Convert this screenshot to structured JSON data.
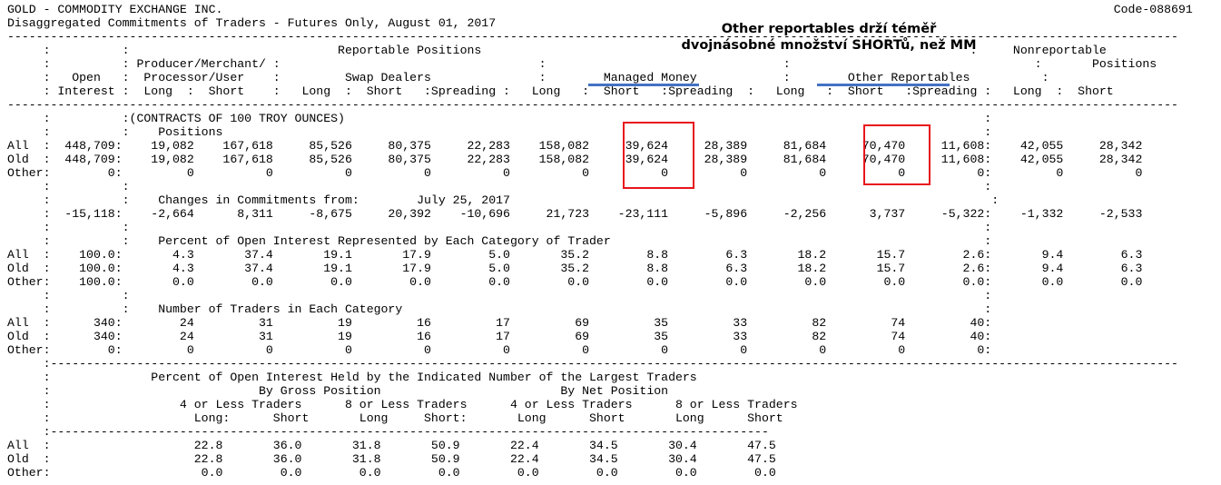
{
  "report": {
    "lines": [
      "GOLD - COMMODITY EXCHANGE INC.                                                                                                                            Code-088691",
      "Disaggregated Commitments of Traders - Futures Only, August 01, 2017",
      "-------------------------------------------------------------------------------------------------------------------------------------------------------------------",
      "     :          :                             Reportable Positions                                                                    :     Nonreportable",
      "     :          : Producer/Merchant/ :                                    :                                 :                                  :       Positions",
      "     :   Open   :  Processor/User    :         Swap Dealers               :        Managed Money            :        Other Reportables          :",
      "     : Interest :  Long  :  Short    :   Long  :  Short   :Spreading :   Long   :  Short   :Spreading  :   Long   :  Short   :Spreading :   Long  :  Short",
      "-------------------------------------------------------------------------------------------------------------------------------------------------------------------",
      "     :          :(CONTRACTS OF 100 TROY OUNCES)                                                                                         :",
      "     :          :    Positions                                                                                                          :",
      "All  :  448,709:    19,082    167,618     85,526     80,375     22,283    158,082     39,624     28,389     81,684     70,470     11,608:    42,055     28,342",
      "Old  :  448,709:    19,082    167,618     85,526     80,375     22,283    158,082     39,624     28,389     81,684     70,470     11,608:    42,055     28,342",
      "Other:        0:         0          0          0          0          0          0          0          0          0          0          0:         0          0",
      "     :          :                                                                                                                       :",
      "     :          :    Changes in Commitments from:        July 25, 2017                                                                   :",
      "     :  -15,118:    -2,664      8,311     -8,675     20,392    -10,696     21,723    -23,111     -5,896     -2,256      3,737     -5,322:    -1,332     -2,533",
      "     :          :                                                                                                                       :",
      "     :          :    Percent of Open Interest Represented by Each Category of Trader                                                    :",
      "All  :    100.0:       4.3       37.4       19.1       17.9        5.0       35.2        8.8        6.3       18.2       15.7        2.6:       9.4        6.3",
      "Old  :    100.0:       4.3       37.4       19.1       17.9        5.0       35.2        8.8        6.3       18.2       15.7        2.6:       9.4        6.3",
      "Other:    100.0:       0.0        0.0        0.0        0.0        0.0        0.0        0.0        0.0        0.0        0.0        0.0:       0.0        0.0",
      "     :          :                                                                                                                       :",
      "     :          :    Number of Traders in Each Category                                                                                 :",
      "All  :      340:        24         31         19         16         17         69         35         33         82         74         40:",
      "Old  :      340:        24         31         19         16         17         69         35         33         82         74         40:",
      "Other:        0:         0          0          0          0          0          0          0          0          0          0          0:",
      "     :-------------------------------------------------------------------------------------------------------------------------------------------------------------",
      "     :              Percent of Open Interest Held by the Indicated Number of the Largest Traders",
      "     :                             By Gross Position                         By Net Position",
      "     :                  4 or Less Traders      8 or Less Traders      4 or Less Traders      8 or Less Traders",
      "     :                    Long:      Short       Long     Short:       Long      Short       Long      Short",
      "     :----------------------------------------------------------------------------------------------------",
      "All  :                    22.8       36.0       31.8       50.9       22.4       34.5       30.4       47.5",
      "Old  :                    22.8       36.0       31.8       50.9       22.4       34.5       30.4       47.5",
      "Other:                     0.0        0.0        0.0        0.0        0.0        0.0        0.0        0.0"
    ]
  },
  "annotation": {
    "line1": "Other reportables drží téměř",
    "line2": "dvojnásobné množství SHORTů, než MM"
  },
  "colors": {
    "underline": "#4472c4",
    "highlight_box": "#e8141c"
  }
}
